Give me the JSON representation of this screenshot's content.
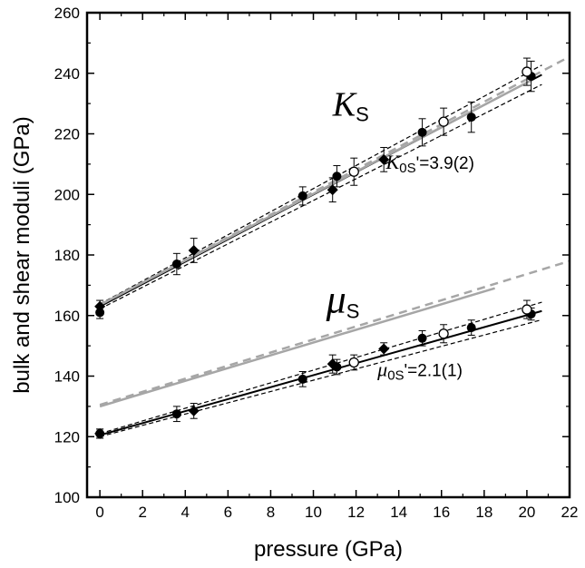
{
  "chart_data": {
    "type": "scatter",
    "xlabel": "pressure (GPa)",
    "ylabel": "bulk and shear moduli (GPa)",
    "xlim": [
      -0.6,
      22
    ],
    "ylim": [
      100,
      260
    ],
    "xticks": [
      0,
      2,
      4,
      6,
      8,
      10,
      12,
      14,
      16,
      18,
      20,
      22
    ],
    "yticks": [
      100,
      120,
      140,
      160,
      180,
      200,
      220,
      240,
      260
    ],
    "grid": false,
    "colors": {
      "data": "#000000",
      "reference": "#a6a6a6"
    },
    "annotations": [
      {
        "id": "ks_label",
        "symbol": "K",
        "subscript": "S",
        "suffix": "",
        "x": 10.9,
        "y": 226
      },
      {
        "id": "ks_value",
        "symbol": "K",
        "subscript": "0S",
        "suffix": "'=3.9(2)",
        "x": 13.4,
        "y": 208.5
      },
      {
        "id": "mu_label",
        "symbol": "μ",
        "subscript": "S",
        "suffix": "",
        "x": 10.6,
        "y": 161
      },
      {
        "id": "mu_value",
        "symbol": "μ",
        "subscript": "0S",
        "suffix": "'=2.1(1)",
        "x": 13.0,
        "y": 140
      }
    ],
    "series": [
      {
        "marker": "filled-circle",
        "x": [
          0,
          3.6,
          9.5,
          11.1,
          15.1,
          17.4,
          20.2,
          0,
          3.6,
          9.5,
          11.1,
          15.1,
          17.4,
          20.2
        ],
        "y": [
          161,
          177,
          199.5,
          206,
          220.5,
          225.5,
          239,
          121,
          127.5,
          139,
          143,
          152.5,
          156,
          160.5
        ],
        "err": [
          2,
          3.5,
          3,
          3.5,
          4.5,
          5,
          5,
          1.5,
          2.5,
          2.5,
          2.5,
          2.5,
          2.5,
          2
        ]
      },
      {
        "marker": "filled-diamond",
        "x": [
          0,
          4.4,
          10.9,
          13.3,
          0,
          4.4,
          10.9,
          13.3
        ],
        "y": [
          163,
          181.5,
          201.5,
          211.5,
          121,
          128.5,
          144,
          149
        ],
        "err": [
          2,
          4,
          4,
          4,
          1.5,
          2.5,
          3,
          2
        ]
      },
      {
        "marker": "open-circle",
        "x": [
          11.9,
          16.1,
          20.0,
          11.9,
          16.1,
          20.0
        ],
        "y": [
          207.5,
          224,
          240.5,
          144.5,
          154,
          162
        ],
        "err": [
          4.5,
          4.5,
          4.5,
          2.5,
          3,
          3
        ]
      }
    ],
    "fits": [
      {
        "style": "solid",
        "color": "#000000",
        "x": [
          0,
          20.7
        ],
        "y": [
          163,
          239.5
        ]
      },
      {
        "style": "solid",
        "color": "#000000",
        "x": [
          0,
          20.7
        ],
        "y": [
          120.5,
          161.5
        ]
      },
      {
        "style": "dashed",
        "color": "#000000",
        "x": [
          0,
          20.7
        ],
        "y": [
          163.8,
          242.7
        ]
      },
      {
        "style": "dashed",
        "color": "#000000",
        "x": [
          0,
          20.7
        ],
        "y": [
          162.2,
          236.3
        ]
      },
      {
        "style": "dashed",
        "color": "#000000",
        "x": [
          0,
          20.7
        ],
        "y": [
          121.0,
          164.4
        ]
      },
      {
        "style": "dashed",
        "color": "#000000",
        "x": [
          0,
          20.7
        ],
        "y": [
          120.0,
          158.6
        ]
      },
      {
        "style": "solid",
        "color": "#a6a6a6",
        "x": [
          0,
          20.3
        ],
        "y": [
          163.5,
          238
        ]
      },
      {
        "style": "dashed",
        "color": "#a6a6a6",
        "x": [
          0,
          22
        ],
        "y": [
          163.5,
          245.5
        ]
      },
      {
        "style": "solid",
        "color": "#a6a6a6",
        "x": [
          0,
          18.5
        ],
        "y": [
          130,
          169
        ]
      },
      {
        "style": "dashed",
        "color": "#a6a6a6",
        "x": [
          0,
          22
        ],
        "y": [
          130.5,
          178
        ]
      }
    ]
  }
}
